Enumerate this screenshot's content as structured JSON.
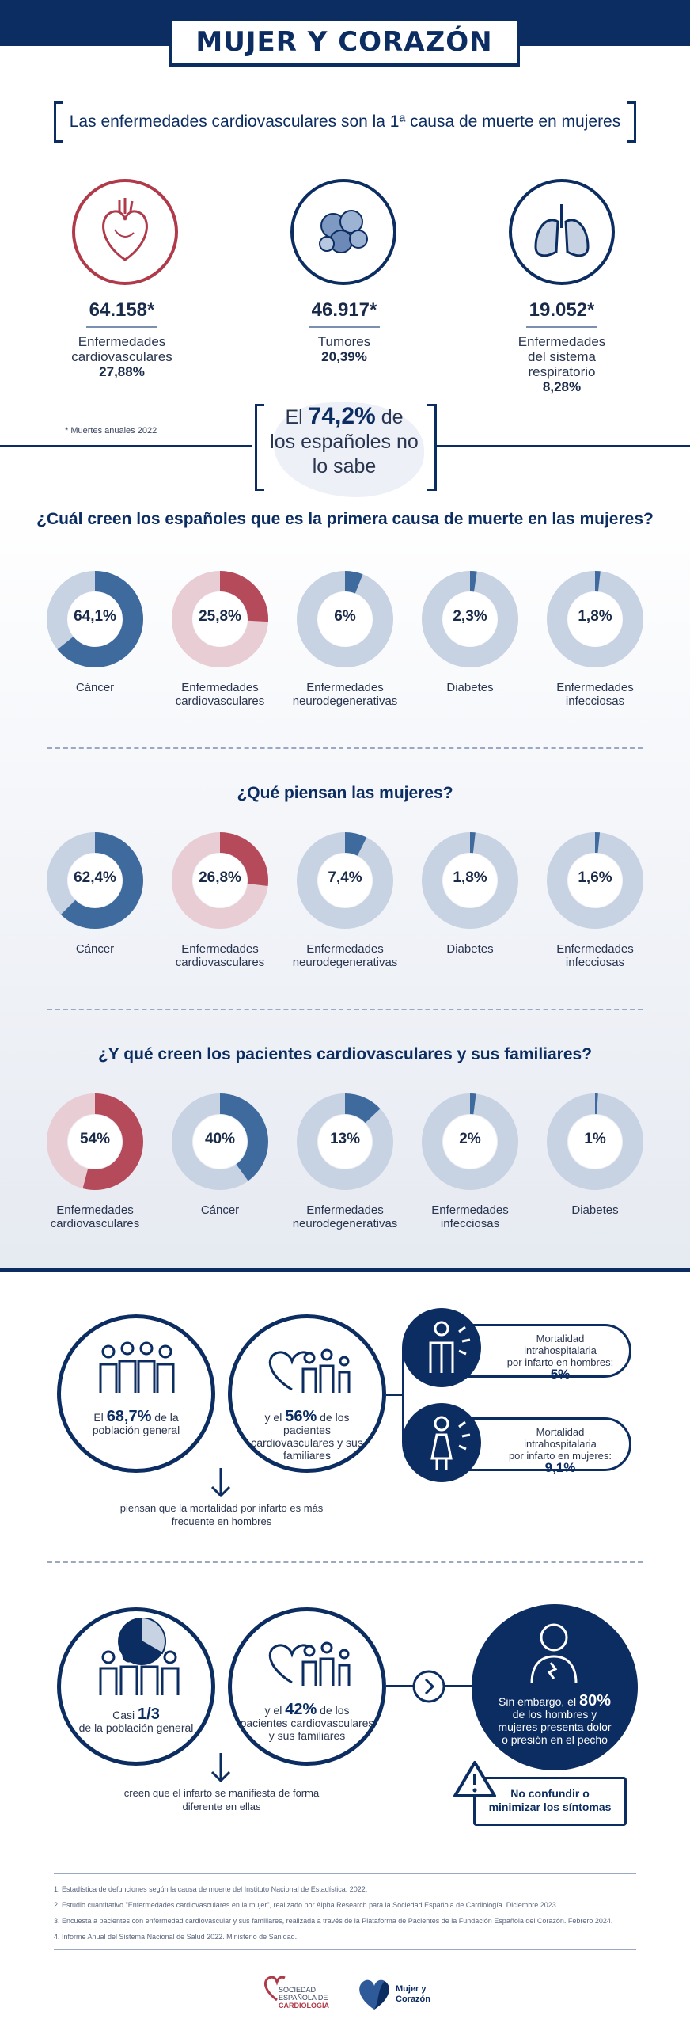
{
  "header": {
    "title": "MUJER Y CORAZÓN"
  },
  "intro": {
    "subtitle": "Las enfermedades cardiovasculares son la 1ª causa de muerte en mujeres"
  },
  "deaths": [
    {
      "icon": "heart-icon",
      "number": "64.158*",
      "label_lines": [
        "Enfermedades",
        "cardiovasculares"
      ],
      "percent": "27,88%"
    },
    {
      "icon": "tumor-cells-icon",
      "number": "46.917*",
      "label_lines": [
        "Tumores"
      ],
      "percent": "20,39%"
    },
    {
      "icon": "lungs-icon",
      "number": "19.052*",
      "label_lines": [
        "Enfermedades",
        "del sistema",
        "respiratorio"
      ],
      "percent": "8,28%"
    }
  ],
  "deaths_note": "* Muertes anuales 2022",
  "callout": {
    "pre": "El",
    "value": "74,2%",
    "post": "de",
    "line2": "los españoles no",
    "line3": "lo sabe"
  },
  "colors": {
    "navy": "#0c2d62",
    "blue": "#3e6a9e",
    "red": "#b54a5a",
    "pink": "#e9cdd4",
    "light_blue": "#c7d2e2"
  },
  "surveys": [
    {
      "question": "¿Cuál creen los españoles que es la primera causa de muerte en las mujeres?",
      "items": [
        {
          "value": 64.1,
          "label": "64,1%",
          "name_lines": [
            "Cáncer"
          ],
          "tone": "blue"
        },
        {
          "value": 25.8,
          "label": "25,8%",
          "name_lines": [
            "Enfermedades",
            "cardiovasculares"
          ],
          "tone": "red"
        },
        {
          "value": 6,
          "label": "6%",
          "name_lines": [
            "Enfermedades",
            "neurodegenerativas"
          ],
          "tone": "blue"
        },
        {
          "value": 2.3,
          "label": "2,3%",
          "name_lines": [
            "Diabetes"
          ],
          "tone": "blue"
        },
        {
          "value": 1.8,
          "label": "1,8%",
          "name_lines": [
            "Enfermedades",
            "infecciosas"
          ],
          "tone": "blue"
        }
      ]
    },
    {
      "question": "¿Qué piensan las mujeres?",
      "items": [
        {
          "value": 62.4,
          "label": "62,4%",
          "name_lines": [
            "Cáncer"
          ],
          "tone": "blue"
        },
        {
          "value": 26.8,
          "label": "26,8%",
          "name_lines": [
            "Enfermedades",
            "cardiovasculares"
          ],
          "tone": "red"
        },
        {
          "value": 7.4,
          "label": "7,4%",
          "name_lines": [
            "Enfermedades",
            "neurodegenerativas"
          ],
          "tone": "blue"
        },
        {
          "value": 1.8,
          "label": "1,8%",
          "name_lines": [
            "Diabetes"
          ],
          "tone": "blue"
        },
        {
          "value": 1.6,
          "label": "1,6%",
          "name_lines": [
            "Enfermedades",
            "infecciosas"
          ],
          "tone": "blue"
        }
      ]
    },
    {
      "question": "¿Y qué creen los pacientes cardiovasculares y sus familiares?",
      "items": [
        {
          "value": 54,
          "label": "54%",
          "name_lines": [
            "Enfermedades",
            "cardiovasculares"
          ],
          "tone": "red"
        },
        {
          "value": 40,
          "label": "40%",
          "name_lines": [
            "Cáncer"
          ],
          "tone": "blue"
        },
        {
          "value": 13,
          "label": "13%",
          "name_lines": [
            "Enfermedades",
            "neurodegenerativas"
          ],
          "tone": "blue"
        },
        {
          "value": 2,
          "label": "2%",
          "name_lines": [
            "Enfermedades",
            "infecciosas"
          ],
          "tone": "blue"
        },
        {
          "value": 1,
          "label": "1%",
          "name_lines": [
            "Diabetes"
          ],
          "tone": "blue"
        }
      ]
    }
  ],
  "mortality": {
    "general": {
      "pre": "El",
      "value": "68,7%",
      "post": "de la",
      "line2": "población general"
    },
    "patients": {
      "pre": "y el",
      "value": "56%",
      "post": "de los pacientes",
      "line2": "cardiovasculares y sus",
      "line3": "familiares"
    },
    "men": {
      "line1": "Mortalidad intrahospitalaria",
      "line2": "por infarto en hombres:",
      "value": "5%"
    },
    "women": {
      "line1": "Mortalidad intrahospitalaria",
      "line2": "por infarto en mujeres:",
      "value": "9,1%"
    },
    "conclusion_lines": [
      "piensan que la mortalidad por infarto es más",
      "frecuente en hombres"
    ]
  },
  "symptoms": {
    "general": {
      "pre": "Casi",
      "value": "1/3",
      "line2": "de la población general"
    },
    "patients": {
      "pre": "y el",
      "value": "42%",
      "post": "de los",
      "line2": "pacientes cardiovasculares",
      "line3": "y sus familiares"
    },
    "reality": {
      "pre": "Sin embargo, el",
      "value": "80%",
      "line2": "de los hombres y",
      "line3": "mujeres presenta dolor",
      "line4": "o presión en el pecho"
    },
    "warning_lines": [
      "No confundir o",
      "minimizar los síntomas"
    ],
    "conclusion_lines": [
      "creen que el infarto se manifiesta de forma",
      "diferente en ellas"
    ]
  },
  "references": [
    "1. Estadística de defunciones según la causa de muerte del Instituto Nacional de Estadística. 2022.",
    "2. Estudio cuantitativo \"Enfermedades cardiovasculares en la mujer\", realizado por Alpha Research para la Sociedad Española de Cardiología. Diciembre 2023.",
    "3. Encuesta a pacientes con enfermedad cardiovascular y sus familiares, realizada a través de la Plataforma de Pacientes de la Fundación Española del Corazón. Febrero 2024.",
    "4. Informe Anual del Sistema Nacional de Salud 2022. Ministerio de Sanidad."
  ],
  "logos": {
    "sec_lines": [
      "SOCIEDAD",
      "ESPAÑOLA DE",
      "CARDIOLOGÍA"
    ],
    "campaign_lines": [
      "Mujer y",
      "Corazón"
    ]
  }
}
